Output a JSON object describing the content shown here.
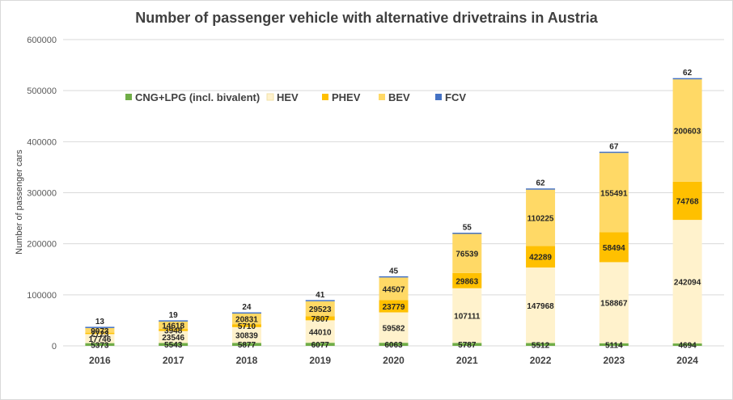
{
  "chart_data": {
    "type": "bar",
    "stacked": true,
    "title": "Number of passenger vehicle with alternative drivetrains in Austria",
    "xlabel": "",
    "ylabel": "Number of passenger cars",
    "ylim": [
      0,
      600000
    ],
    "yticks": [
      0,
      100000,
      200000,
      300000,
      400000,
      500000,
      600000
    ],
    "grid": true,
    "legend_position": "top-left",
    "categories": [
      "2016",
      "2017",
      "2018",
      "2019",
      "2020",
      "2021",
      "2022",
      "2023",
      "2024"
    ],
    "series": [
      {
        "name": "CNG+LPG (incl. bivalent)",
        "color": "#70ad47",
        "values": [
          5373,
          5543,
          5877,
          6077,
          6063,
          5787,
          5512,
          5114,
          4694
        ]
      },
      {
        "name": "HEV",
        "color": "#fff2cc",
        "values": [
          17746,
          23546,
          30839,
          44010,
          59582,
          107111,
          147968,
          158867,
          242094
        ]
      },
      {
        "name": "PHEV",
        "color": "#ffc000",
        "values": [
          2723,
          3948,
          5710,
          7807,
          23779,
          29863,
          42289,
          58494,
          74768
        ]
      },
      {
        "name": "BEV",
        "color": "#ffd966",
        "values": [
          9073,
          14618,
          20831,
          29523,
          44507,
          76539,
          110225,
          155491,
          200603
        ]
      },
      {
        "name": "FCV",
        "color": "#4472c4",
        "values": [
          13,
          19,
          24,
          41,
          45,
          55,
          62,
          67,
          62
        ]
      }
    ]
  }
}
